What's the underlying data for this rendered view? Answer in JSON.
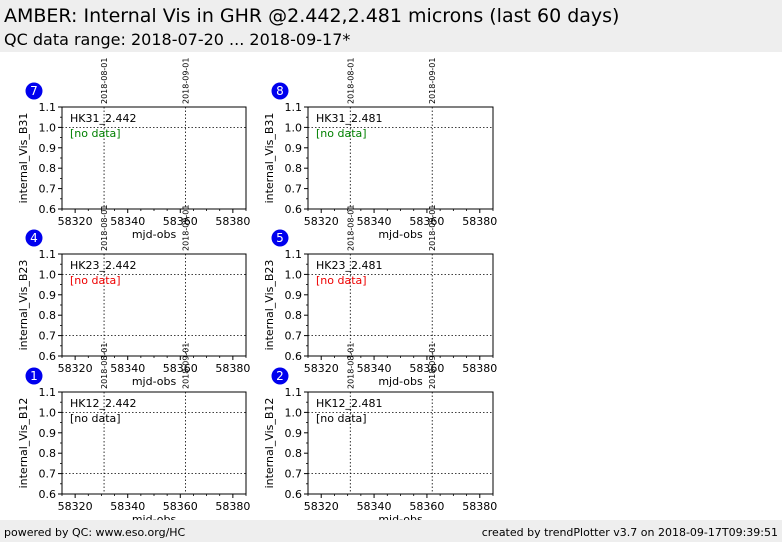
{
  "header": {
    "title": "AMBER: Internal Vis in GHR @2.442,2.481 microns (last 60 days)",
    "subtitle": "QC data range: 2018-07-20 ... 2018-09-17*"
  },
  "footer": {
    "left": "powered by QC: www.eso.org/HC",
    "right": "created by trendPlotter v3.7 on 2018-09-17T09:39:51"
  },
  "colors": {
    "badge": "#0000ee",
    "header_bg": "#eeeeee",
    "no_data_green": "#008000",
    "no_data_red": "#ee0000",
    "no_data_black": "#000000"
  },
  "chart_data": [
    {
      "type": "scatter",
      "panel": "7",
      "label": "HK31_2.442",
      "status": "[no data]",
      "status_color": "#008000",
      "xlabel": "mjd-obs",
      "ylabel": "internal_Vis_B31",
      "xlim": [
        58315,
        58385
      ],
      "xticks": [
        "58320",
        "58340",
        "58360",
        "58380"
      ],
      "ylim": [
        0.6,
        1.1
      ],
      "yticks": [
        "0.6",
        "0.7",
        "0.8",
        "0.9",
        "1.0",
        "1.1"
      ],
      "hlines": [
        1.0
      ],
      "date_markers": [
        {
          "label": "2018-08-01",
          "x": 58331
        },
        {
          "label": "2018-09-01",
          "x": 58362
        }
      ],
      "points": []
    },
    {
      "type": "scatter",
      "panel": "8",
      "label": "HK31_2.481",
      "status": "[no data]",
      "status_color": "#008000",
      "xlabel": "mjd-obs",
      "ylabel": "internal_Vis_B31",
      "xlim": [
        58315,
        58385
      ],
      "xticks": [
        "58320",
        "58340",
        "58360",
        "58380"
      ],
      "ylim": [
        0.6,
        1.1
      ],
      "yticks": [
        "0.6",
        "0.7",
        "0.8",
        "0.9",
        "1.0",
        "1.1"
      ],
      "hlines": [
        1.0
      ],
      "date_markers": [
        {
          "label": "2018-08-01",
          "x": 58331
        },
        {
          "label": "2018-09-01",
          "x": 58362
        }
      ],
      "points": []
    },
    {
      "type": "scatter",
      "panel": "4",
      "label": "HK23_2.442",
      "status": "[no data]",
      "status_color": "#ee0000",
      "xlabel": "mjd-obs",
      "ylabel": "internal_Vis_B23",
      "xlim": [
        58315,
        58385
      ],
      "xticks": [
        "58320",
        "58340",
        "58360",
        "58380"
      ],
      "ylim": [
        0.6,
        1.1
      ],
      "yticks": [
        "0.6",
        "0.7",
        "0.8",
        "0.9",
        "1.0",
        "1.1"
      ],
      "hlines": [
        1.0,
        0.7
      ],
      "date_markers": [
        {
          "label": "2018-08-01",
          "x": 58331
        },
        {
          "label": "2018-09-01",
          "x": 58362
        }
      ],
      "points": []
    },
    {
      "type": "scatter",
      "panel": "5",
      "label": "HK23_2.481",
      "status": "[no data]",
      "status_color": "#ee0000",
      "xlabel": "mjd-obs",
      "ylabel": "internal_Vis_B23",
      "xlim": [
        58315,
        58385
      ],
      "xticks": [
        "58320",
        "58340",
        "58360",
        "58380"
      ],
      "ylim": [
        0.6,
        1.1
      ],
      "yticks": [
        "0.6",
        "0.7",
        "0.8",
        "0.9",
        "1.0",
        "1.1"
      ],
      "hlines": [
        1.0,
        0.7
      ],
      "date_markers": [
        {
          "label": "2018-08-01",
          "x": 58331
        },
        {
          "label": "2018-09-01",
          "x": 58362
        }
      ],
      "points": []
    },
    {
      "type": "scatter",
      "panel": "1",
      "label": "HK12_2.442",
      "status": "[no data]",
      "status_color": "#000000",
      "xlabel": "mjd-obs",
      "ylabel": "internal_Vis_B12",
      "xlim": [
        58315,
        58385
      ],
      "xticks": [
        "58320",
        "58340",
        "58360",
        "58380"
      ],
      "ylim": [
        0.6,
        1.1
      ],
      "yticks": [
        "0.6",
        "0.7",
        "0.8",
        "0.9",
        "1.0",
        "1.1"
      ],
      "hlines": [
        1.0,
        0.7
      ],
      "date_markers": [
        {
          "label": "2018-08-01",
          "x": 58331
        },
        {
          "label": "2018-09-01",
          "x": 58362
        }
      ],
      "points": []
    },
    {
      "type": "scatter",
      "panel": "2",
      "label": "HK12_2.481",
      "status": "[no data]",
      "status_color": "#000000",
      "xlabel": "mjd-obs",
      "ylabel": "internal_Vis_B12",
      "xlim": [
        58315,
        58385
      ],
      "xticks": [
        "58320",
        "58340",
        "58360",
        "58380"
      ],
      "ylim": [
        0.6,
        1.1
      ],
      "yticks": [
        "0.6",
        "0.7",
        "0.8",
        "0.9",
        "1.0",
        "1.1"
      ],
      "hlines": [
        1.0,
        0.7
      ],
      "date_markers": [
        {
          "label": "2018-08-01",
          "x": 58331
        },
        {
          "label": "2018-09-01",
          "x": 58362
        }
      ],
      "points": []
    }
  ]
}
